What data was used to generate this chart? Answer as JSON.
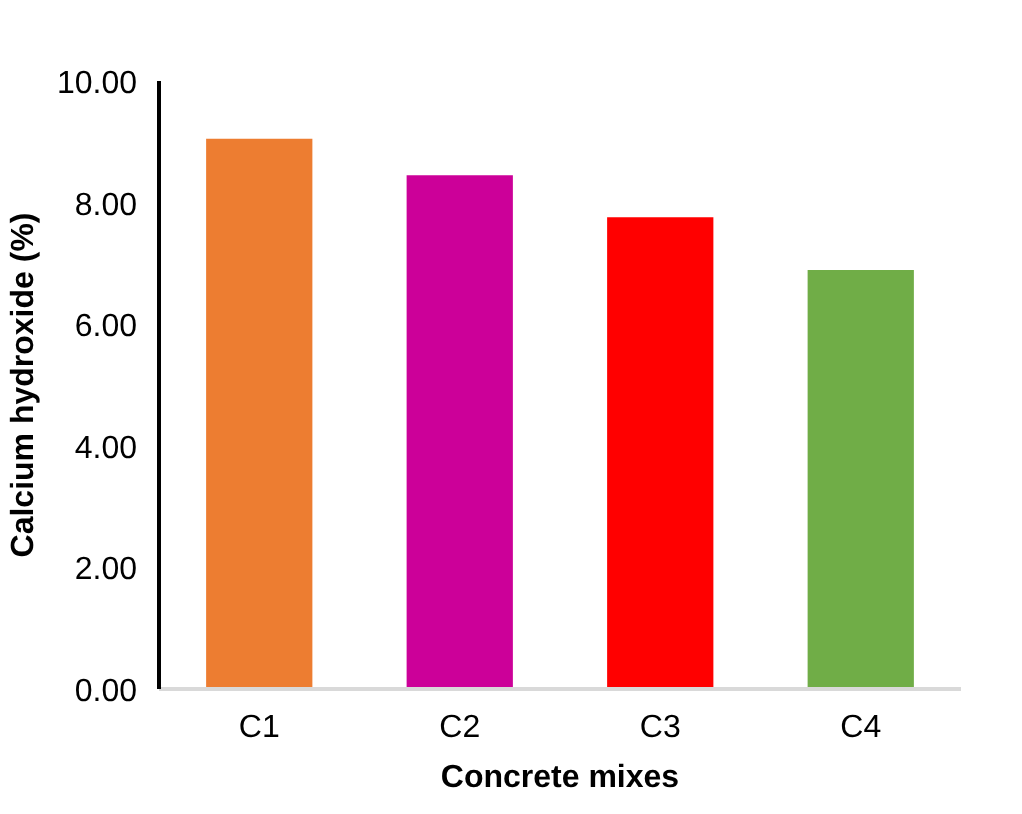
{
  "chart_data": {
    "type": "bar",
    "xlabel": "Concrete mixes",
    "ylabel": "Calcium hydroxide (%)",
    "categories": [
      "C1",
      "C2",
      "C3",
      "C4"
    ],
    "values": [
      9.05,
      8.45,
      7.76,
      6.89
    ],
    "colors": [
      "#ed7d31",
      "#cc0099",
      "#ff0000",
      "#70ad47"
    ],
    "ylim": [
      0,
      10
    ],
    "yticks": [
      {
        "value": 0,
        "label": "0.00"
      },
      {
        "value": 2,
        "label": "2.00"
      },
      {
        "value": 4,
        "label": "4.00"
      },
      {
        "value": 6,
        "label": "6.00"
      },
      {
        "value": 8,
        "label": "8.00"
      },
      {
        "value": 10,
        "label": "10.00"
      }
    ],
    "grid": false
  }
}
